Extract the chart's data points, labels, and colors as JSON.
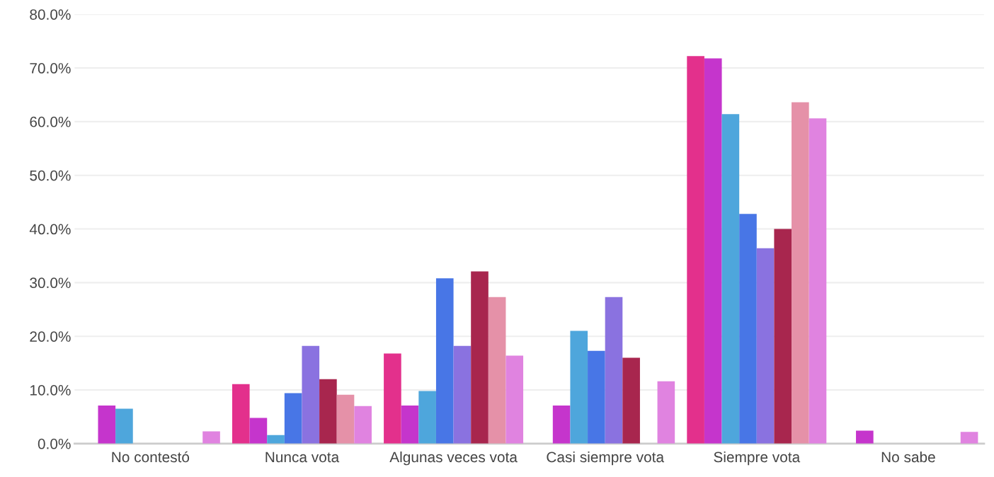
{
  "chart_data": {
    "type": "bar",
    "categories": [
      "No contestó",
      "Nunca vota",
      "Algunas veces vota",
      "Casi siempre vota",
      "Siempre vota",
      "No sabe"
    ],
    "series": [
      {
        "color": "#e3308c",
        "values": [
          0,
          11.1,
          16.8,
          0,
          72.2,
          0
        ]
      },
      {
        "color": "#c535cc",
        "values": [
          7.1,
          4.8,
          7.1,
          7.1,
          71.8,
          2.4
        ]
      },
      {
        "color": "#4ea6dc",
        "values": [
          6.5,
          1.6,
          9.8,
          21.0,
          61.4,
          0
        ]
      },
      {
        "color": "#4876e6",
        "values": [
          0,
          9.4,
          30.8,
          17.3,
          42.8,
          0
        ]
      },
      {
        "color": "#8a72e0",
        "values": [
          0,
          18.2,
          18.2,
          27.3,
          36.4,
          0
        ]
      },
      {
        "color": "#a8264e",
        "values": [
          0,
          12.0,
          32.1,
          16.0,
          40.0,
          0
        ]
      },
      {
        "color": "#e591a8",
        "values": [
          0,
          9.1,
          27.3,
          0,
          63.6,
          0
        ]
      },
      {
        "color": "#e083e0",
        "values": [
          2.3,
          7.0,
          16.4,
          11.6,
          60.6,
          2.2
        ]
      }
    ],
    "ylim": [
      0,
      80
    ],
    "yticks": [
      {
        "value": 0,
        "label": "0.0%"
      },
      {
        "value": 10,
        "label": "10.0%"
      },
      {
        "value": 20,
        "label": "20.0%"
      },
      {
        "value": 30,
        "label": "30.0%"
      },
      {
        "value": 40,
        "label": "40.0%"
      },
      {
        "value": 50,
        "label": "50.0%"
      },
      {
        "value": 60,
        "label": "60.0%"
      },
      {
        "value": 70,
        "label": "70.0%"
      },
      {
        "value": 80,
        "label": "80.0%"
      }
    ],
    "grid": "y",
    "legend": false
  }
}
